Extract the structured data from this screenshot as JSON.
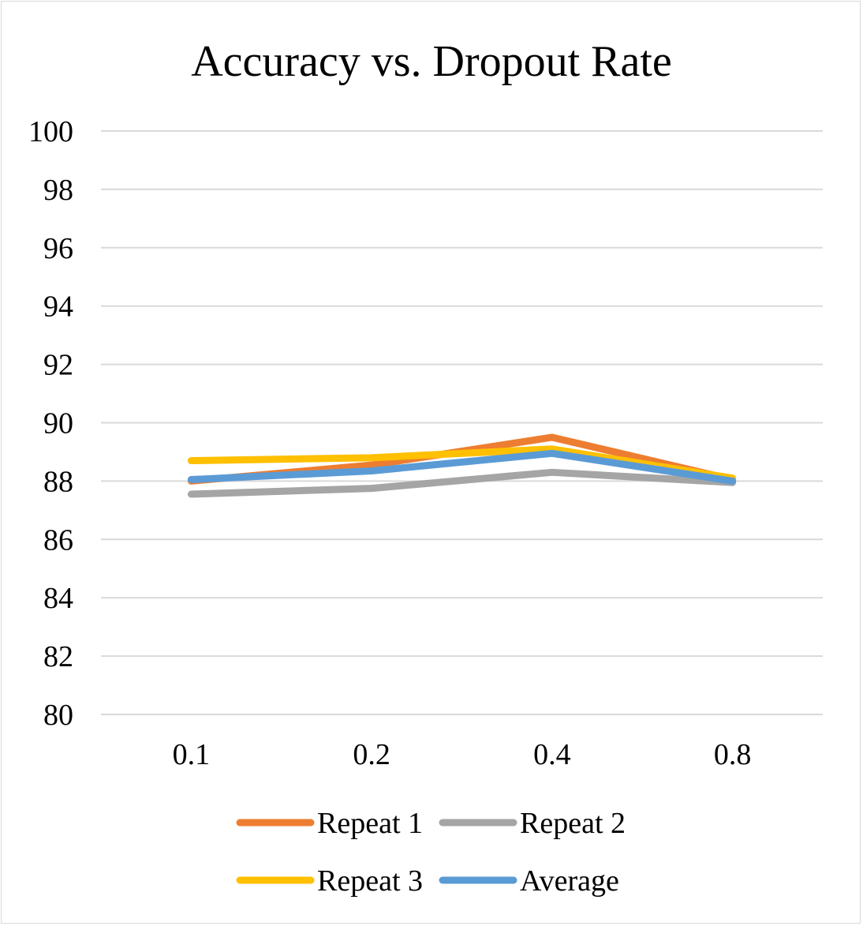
{
  "chart_data": {
    "type": "line",
    "title": "Accuracy vs. Dropout Rate",
    "xlabel": "",
    "ylabel": "",
    "categories": [
      "0.1",
      "0.2",
      "0.4",
      "0.8"
    ],
    "ylim": [
      80,
      100
    ],
    "yticks": [
      80,
      82,
      84,
      86,
      88,
      90,
      92,
      94,
      96,
      98,
      100
    ],
    "grid": true,
    "legend_position": "bottom",
    "series": [
      {
        "name": "Repeat 1",
        "color": "#ed7d31",
        "values": [
          88.0,
          88.55,
          89.5,
          88.05
        ]
      },
      {
        "name": "Repeat 2",
        "color": "#a5a5a5",
        "values": [
          87.55,
          87.75,
          88.3,
          87.95
        ]
      },
      {
        "name": "Repeat 3",
        "color": "#ffc000",
        "values": [
          88.7,
          88.8,
          89.1,
          88.1
        ]
      },
      {
        "name": "Average",
        "color": "#5b9bd5",
        "values": [
          88.05,
          88.35,
          88.95,
          88.0
        ]
      }
    ]
  }
}
